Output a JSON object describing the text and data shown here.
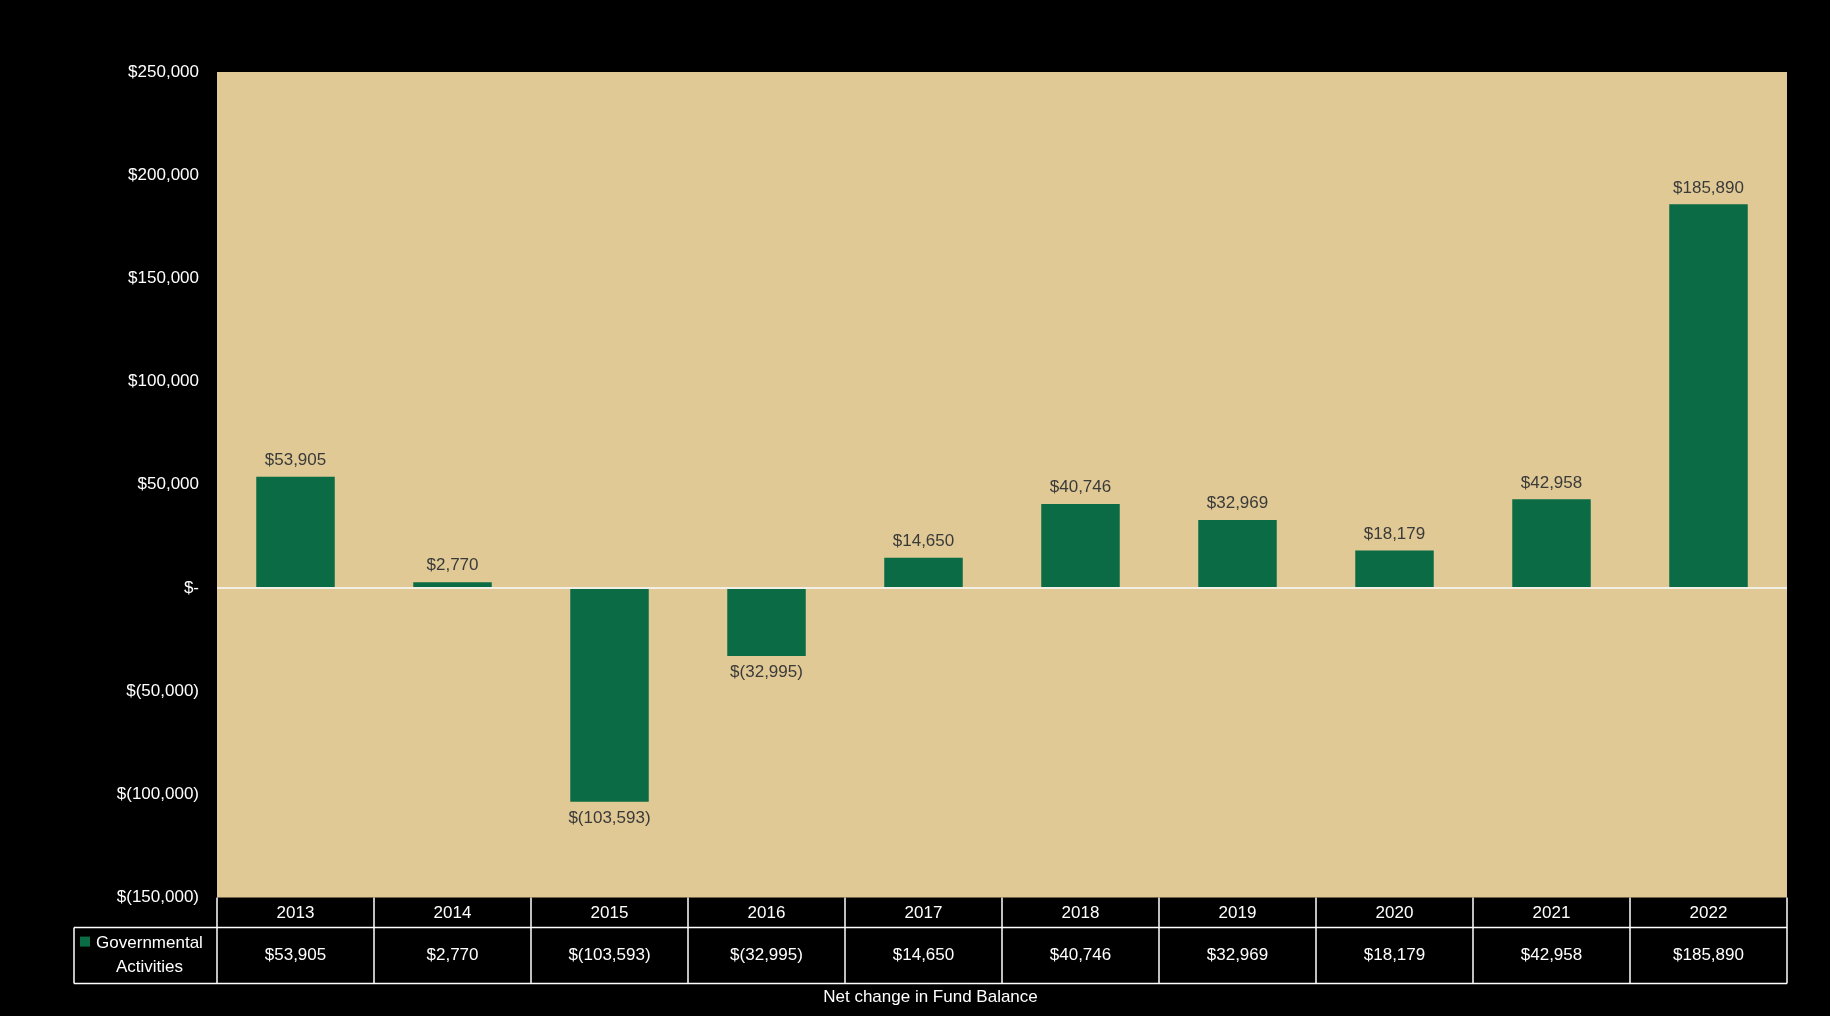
{
  "chart_data": {
    "type": "bar",
    "xlabel": "Net change in Fund Balance",
    "categories": [
      "2013",
      "2014",
      "2015",
      "2016",
      "2017",
      "2018",
      "2019",
      "2020",
      "2021",
      "2022"
    ],
    "series": [
      {
        "name": "Governmental Activities",
        "color": "#0b6b45",
        "values": [
          53905,
          2770,
          -103593,
          -32995,
          14650,
          40746,
          32969,
          18179,
          42958,
          185890
        ],
        "value_labels": [
          "$53,905",
          "$2,770",
          "$(103,593)",
          "$(32,995)",
          "$14,650",
          "$40,746",
          "$32,969",
          "$18,179",
          "$42,958",
          "$185,890"
        ]
      }
    ],
    "ylim": [
      -150000,
      250000
    ],
    "yticks": [
      {
        "value": -150000,
        "label": "$(150,000)"
      },
      {
        "value": -100000,
        "label": "$(100,000)"
      },
      {
        "value": -50000,
        "label": "$(50,000)"
      },
      {
        "value": 0,
        "label": "$-"
      },
      {
        "value": 50000,
        "label": "$50,000"
      },
      {
        "value": 100000,
        "label": "$100,000"
      },
      {
        "value": 150000,
        "label": "$150,000"
      },
      {
        "value": 200000,
        "label": "$200,000"
      },
      {
        "value": 250000,
        "label": "$250,000"
      }
    ],
    "ref_lines": [
      {
        "axis": "y",
        "value": 0,
        "color": "#f2efe6"
      }
    ],
    "grid": false,
    "legend": "bottom left"
  }
}
